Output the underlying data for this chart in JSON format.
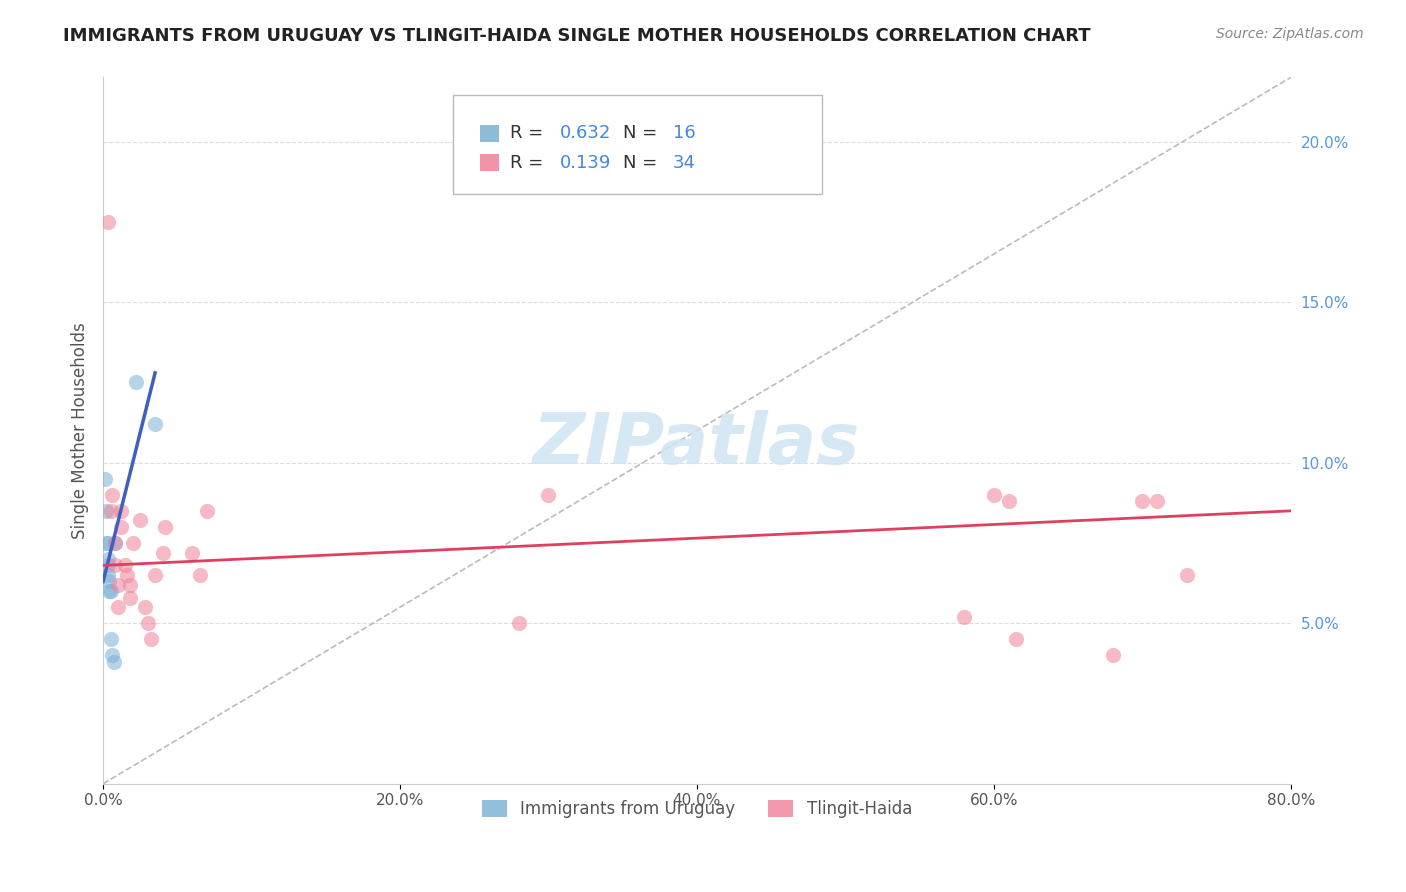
{
  "title": "IMMIGRANTS FROM URUGUAY VS TLINGIT-HAIDA SINGLE MOTHER HOUSEHOLDS CORRELATION CHART",
  "source": "Source: ZipAtlas.com",
  "ylabel": "Single Mother Households",
  "x_tick_labels": [
    "0.0%",
    "20.0%",
    "40.0%",
    "60.0%",
    "80.0%"
  ],
  "x_tick_positions": [
    0,
    0.2,
    0.4,
    0.6,
    0.8
  ],
  "y_tick_labels_right": [
    "20.0%",
    "15.0%",
    "10.0%",
    "5.0%"
  ],
  "y_tick_positions_right": [
    0.2,
    0.15,
    0.1,
    0.05
  ],
  "xlim": [
    0,
    0.8
  ],
  "ylim": [
    0,
    0.22
  ],
  "watermark": "ZIPatlas",
  "blue_scatter_x": [
    0.001,
    0.002,
    0.002,
    0.003,
    0.003,
    0.003,
    0.003,
    0.004,
    0.004,
    0.005,
    0.005,
    0.006,
    0.007,
    0.008,
    0.022,
    0.035
  ],
  "blue_scatter_y": [
    0.095,
    0.085,
    0.075,
    0.075,
    0.07,
    0.068,
    0.065,
    0.063,
    0.06,
    0.06,
    0.045,
    0.04,
    0.038,
    0.075,
    0.125,
    0.112
  ],
  "pink_scatter_x": [
    0.003,
    0.005,
    0.006,
    0.008,
    0.008,
    0.01,
    0.01,
    0.012,
    0.012,
    0.015,
    0.016,
    0.018,
    0.018,
    0.02,
    0.025,
    0.028,
    0.03,
    0.032,
    0.035,
    0.04,
    0.042,
    0.06,
    0.065,
    0.07,
    0.28,
    0.3,
    0.58,
    0.6,
    0.61,
    0.615,
    0.68,
    0.7,
    0.71,
    0.73
  ],
  "pink_scatter_y": [
    0.175,
    0.085,
    0.09,
    0.075,
    0.068,
    0.062,
    0.055,
    0.085,
    0.08,
    0.068,
    0.065,
    0.062,
    0.058,
    0.075,
    0.082,
    0.055,
    0.05,
    0.045,
    0.065,
    0.072,
    0.08,
    0.072,
    0.065,
    0.085,
    0.05,
    0.09,
    0.052,
    0.09,
    0.088,
    0.045,
    0.04,
    0.088,
    0.088,
    0.065
  ],
  "blue_line_x": [
    0.0,
    0.035
  ],
  "blue_line_y": [
    0.063,
    0.128
  ],
  "pink_line_x": [
    0.0,
    0.8
  ],
  "pink_line_y": [
    0.068,
    0.085
  ],
  "dash_line_x": [
    0.0,
    0.8
  ],
  "dash_line_y": [
    0.0,
    0.22
  ],
  "blue_color": "#7ab0d4",
  "pink_color": "#f08098",
  "blue_line_color": "#4060c0",
  "pink_line_color": "#e04060",
  "dash_color": "#bbbbbb",
  "grid_color": "#dddddd",
  "title_color": "#222222",
  "source_color": "#888888",
  "right_axis_color": "#5599dd",
  "watermark_color": "#d0e4f4",
  "scatter_alpha": 0.55,
  "scatter_size": 120,
  "legend_r1": "0.632",
  "legend_n1": "16",
  "legend_r2": "0.139",
  "legend_n2": "34",
  "legend_num_color": "#4488dd",
  "legend_text_color": "#333333",
  "bottom_legend_color": "#555555",
  "bottom_label1": "Immigrants from Uruguay",
  "bottom_label2": "Tlingit-Haida"
}
